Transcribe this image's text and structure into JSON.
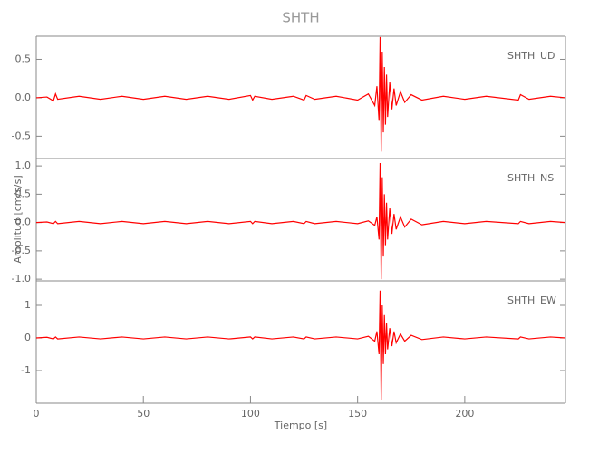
{
  "chart_data": [
    {
      "type": "line",
      "title": "SHTH",
      "station": "SHTH",
      "component": "UD",
      "x": [
        0,
        5,
        8,
        9,
        10,
        20,
        30,
        40,
        50,
        60,
        70,
        80,
        90,
        100,
        101,
        102,
        110,
        120,
        125,
        126,
        130,
        140,
        150,
        155,
        158,
        159,
        160,
        160.5,
        161,
        161.5,
        162,
        162.5,
        163,
        163.5,
        164,
        165,
        166,
        167,
        168,
        170,
        172,
        175,
        180,
        190,
        200,
        210,
        225,
        226,
        230,
        240,
        247
      ],
      "series": [
        {
          "color": "#ff0000",
          "values": [
            0,
            0.01,
            -0.04,
            0.05,
            -0.02,
            0.02,
            -0.02,
            0.02,
            -0.02,
            0.02,
            -0.02,
            0.02,
            -0.02,
            0.03,
            -0.03,
            0.02,
            -0.02,
            0.02,
            -0.03,
            0.03,
            -0.02,
            0.02,
            -0.03,
            0.05,
            -0.1,
            0.15,
            -0.3,
            0.79,
            -0.7,
            0.6,
            -0.45,
            0.4,
            -0.35,
            0.3,
            -0.25,
            0.2,
            -0.15,
            0.12,
            -0.1,
            0.08,
            -0.06,
            0.04,
            -0.03,
            0.02,
            -0.02,
            0.02,
            -0.03,
            0.04,
            -0.02,
            0.02,
            0
          ]
        }
      ],
      "xlim": [
        0,
        247
      ],
      "ylim": [
        -0.79,
        0.8
      ],
      "yticks": [
        -0.5,
        {
          "value": 0,
          "label": "0.0"
        },
        0.5
      ]
    },
    {
      "type": "line",
      "station": "SHTH",
      "component": "NS",
      "ylabel": "Amplitud [cm/s/s]",
      "x": [
        0,
        5,
        8,
        9,
        10,
        20,
        30,
        40,
        50,
        60,
        70,
        80,
        90,
        100,
        101,
        102,
        110,
        120,
        125,
        126,
        130,
        140,
        150,
        155,
        158,
        159,
        160,
        160.5,
        161,
        161.5,
        162,
        162.5,
        163,
        163.5,
        164,
        165,
        166,
        167,
        168,
        170,
        172,
        175,
        180,
        190,
        200,
        210,
        225,
        226,
        230,
        240,
        247
      ],
      "series": [
        {
          "color": "#ff0000",
          "values": [
            0,
            0.01,
            -0.02,
            0.02,
            -0.02,
            0.02,
            -0.02,
            0.02,
            -0.02,
            0.02,
            -0.02,
            0.02,
            -0.02,
            0.02,
            -0.02,
            0.02,
            -0.02,
            0.02,
            -0.02,
            0.02,
            -0.02,
            0.02,
            -0.02,
            0.03,
            -0.05,
            0.1,
            -0.3,
            1.05,
            -1.0,
            0.8,
            -0.6,
            0.5,
            -0.4,
            0.35,
            -0.3,
            0.25,
            -0.2,
            0.15,
            -0.12,
            0.1,
            -0.08,
            0.06,
            -0.04,
            0.02,
            -0.02,
            0.02,
            -0.02,
            0.02,
            -0.02,
            0.02,
            0
          ]
        }
      ],
      "xlim": [
        0,
        247
      ],
      "ylim": [
        -1.03,
        1.13
      ],
      "yticks": [
        {
          "value": -1,
          "label": "-1.0"
        },
        -0.5,
        {
          "value": 0,
          "label": "0.0"
        },
        0.5,
        {
          "value": 1,
          "label": "1.0"
        }
      ]
    },
    {
      "type": "line",
      "station": "SHTH",
      "component": "EW",
      "xlabel": "Tiempo [s]",
      "x": [
        0,
        5,
        8,
        9,
        10,
        20,
        30,
        40,
        50,
        60,
        70,
        80,
        90,
        100,
        101,
        102,
        110,
        120,
        125,
        126,
        130,
        140,
        150,
        155,
        158,
        159,
        160,
        160.5,
        161,
        161.5,
        162,
        162.5,
        163,
        163.5,
        164,
        165,
        166,
        167,
        168,
        170,
        172,
        175,
        180,
        190,
        200,
        210,
        225,
        226,
        230,
        240,
        247
      ],
      "series": [
        {
          "color": "#ff0000",
          "values": [
            0,
            0.02,
            -0.03,
            0.03,
            -0.03,
            0.03,
            -0.03,
            0.03,
            -0.03,
            0.03,
            -0.03,
            0.03,
            -0.03,
            0.03,
            -0.03,
            0.03,
            -0.03,
            0.03,
            -0.03,
            0.03,
            -0.03,
            0.03,
            -0.03,
            0.05,
            -0.1,
            0.2,
            -0.5,
            1.45,
            -1.9,
            1.0,
            -0.8,
            0.7,
            -0.5,
            0.45,
            -0.35,
            0.3,
            -0.25,
            0.2,
            -0.15,
            0.12,
            -0.1,
            0.08,
            -0.05,
            0.03,
            -0.03,
            0.03,
            -0.03,
            0.03,
            -0.03,
            0.03,
            0
          ]
        }
      ],
      "xlim": [
        0,
        247
      ],
      "ylim": [
        -2,
        1.75
      ],
      "yticks": [
        -1,
        0,
        1
      ],
      "xticks": [
        0,
        50,
        100,
        150,
        200
      ]
    }
  ]
}
